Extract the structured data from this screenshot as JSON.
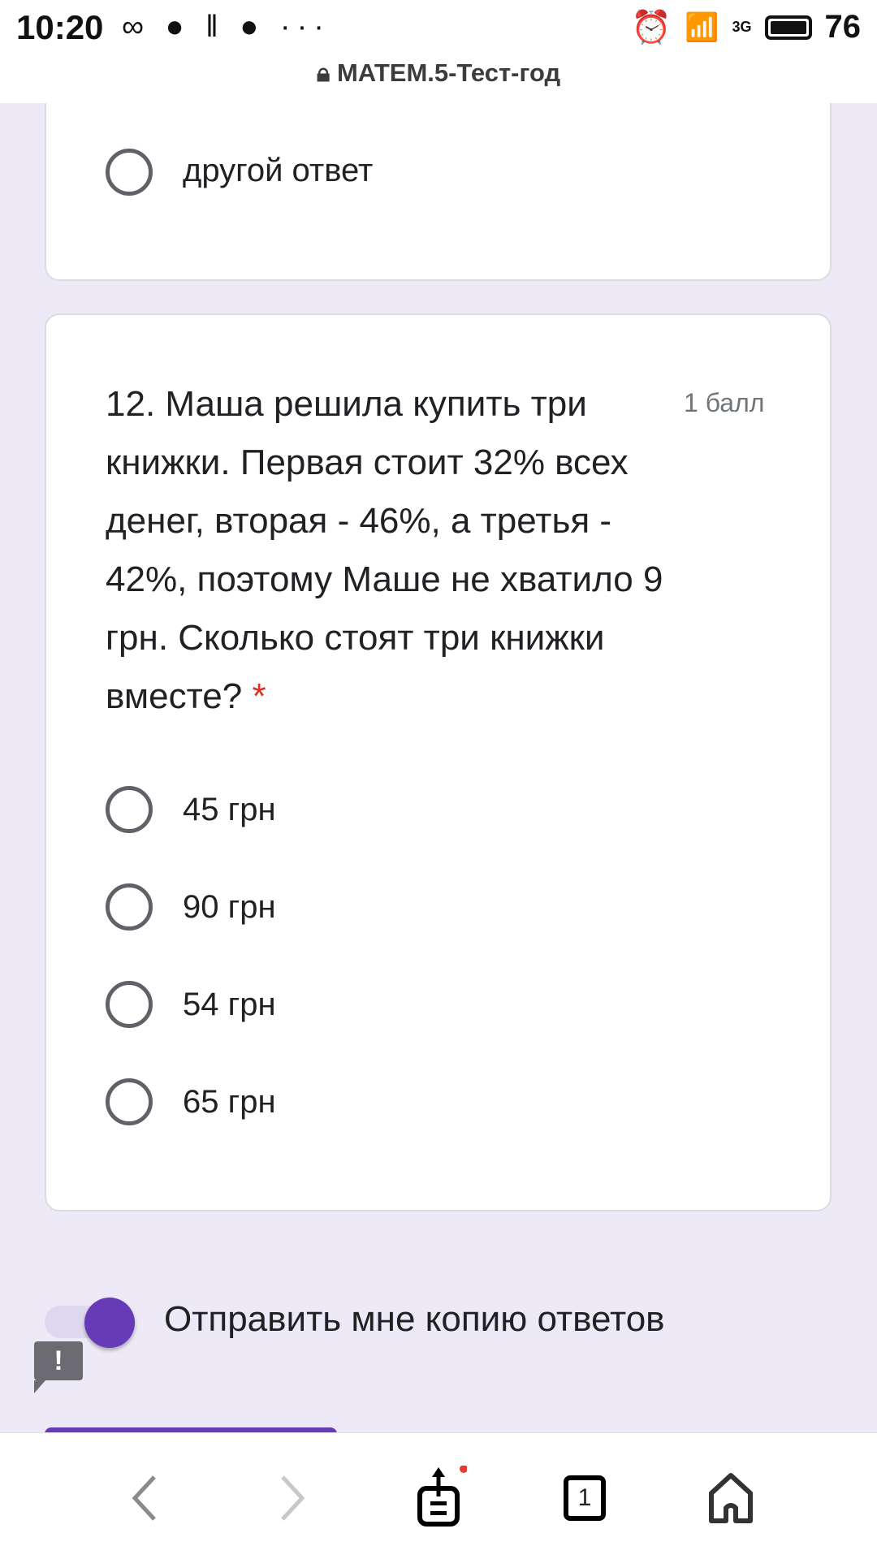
{
  "status_bar": {
    "time": "10:20",
    "battery": "76",
    "network": "3G"
  },
  "browser": {
    "title": "MATEM.5-Тест-год"
  },
  "prev_question": {
    "options": [
      "другой ответ"
    ]
  },
  "question": {
    "text": "12. Маша решила купить три книжки. Первая стоит 32% всех денег, вторая - 46%, а третья - 42%, поэтому Маше не хватило 9 грн. Сколько стоят три книжки вместе?",
    "required_mark": "*",
    "points": "1 балл",
    "options": [
      "45 грн",
      "90 грн",
      "54 грн",
      "65 грн"
    ]
  },
  "copy_toggle": {
    "label": "Отправить мне копию ответов",
    "on": true
  },
  "nav": {
    "tabs_count": "1"
  },
  "colors": {
    "accent": "#673ab7",
    "background": "#ede9f7"
  }
}
